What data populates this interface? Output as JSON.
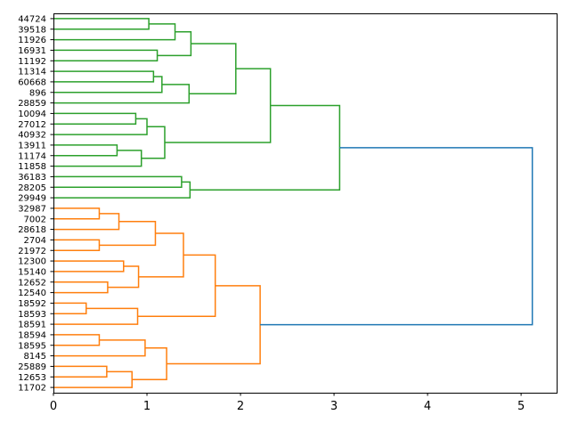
{
  "chart_data": {
    "type": "dendrogram",
    "orientation": "left",
    "title": "",
    "xlabel": "",
    "ylabel": "",
    "xlim": [
      0,
      5.38
    ],
    "xticks": [
      0,
      1,
      2,
      3,
      4,
      5
    ],
    "grid": false,
    "colors": {
      "above_threshold": "#1f77b4",
      "cluster1": "#2ca02c",
      "cluster2": "#ff7f0e"
    },
    "tree": {
      "h": 5.12,
      "color": "#1f77b4",
      "c": [
        {
          "h": 3.06,
          "color": "#2ca02c",
          "c": [
            {
              "h": 2.32,
              "c": [
                {
                  "h": 1.95,
                  "c": [
                    {
                      "h": 1.47,
                      "c": [
                        {
                          "h": 1.3,
                          "c": [
                            {
                              "h": 1.02,
                              "c": [
                                "44724",
                                "39518"
                              ]
                            },
                            "11926"
                          ]
                        },
                        {
                          "h": 1.11,
                          "c": [
                            "16931",
                            "11192"
                          ]
                        }
                      ]
                    },
                    {
                      "h": 1.45,
                      "c": [
                        {
                          "h": 1.16,
                          "c": [
                            {
                              "h": 1.07,
                              "c": [
                                "11314",
                                "60668"
                              ]
                            },
                            "896"
                          ]
                        },
                        "28859"
                      ]
                    }
                  ]
                },
                {
                  "h": 1.19,
                  "c": [
                    {
                      "h": 1.0,
                      "c": [
                        {
                          "h": 0.88,
                          "c": [
                            "10094",
                            "27012"
                          ]
                        },
                        "40932"
                      ]
                    },
                    {
                      "h": 0.94,
                      "c": [
                        {
                          "h": 0.68,
                          "c": [
                            "13911",
                            "11174"
                          ]
                        },
                        "11858"
                      ]
                    }
                  ]
                }
              ]
            },
            {
              "h": 1.46,
              "c": [
                {
                  "h": 1.37,
                  "c": [
                    "36183",
                    "28205"
                  ]
                },
                "29949"
              ]
            }
          ]
        },
        {
          "h": 2.21,
          "color": "#ff7f0e",
          "c": [
            {
              "h": 1.73,
              "c": [
                {
                  "h": 1.39,
                  "c": [
                    {
                      "h": 1.09,
                      "c": [
                        {
                          "h": 0.7,
                          "c": [
                            {
                              "h": 0.49,
                              "c": [
                                "32987",
                                "7002"
                              ]
                            },
                            "28618"
                          ]
                        },
                        {
                          "h": 0.49,
                          "c": [
                            "2704",
                            "21972"
                          ]
                        }
                      ]
                    },
                    {
                      "h": 0.91,
                      "c": [
                        {
                          "h": 0.75,
                          "c": [
                            "12300",
                            "15140"
                          ]
                        },
                        {
                          "h": 0.58,
                          "c": [
                            "12652",
                            "12540"
                          ]
                        }
                      ]
                    }
                  ]
                },
                {
                  "h": 0.9,
                  "c": [
                    {
                      "h": 0.35,
                      "c": [
                        "18592",
                        "18593"
                      ]
                    },
                    "18591"
                  ]
                }
              ]
            },
            {
              "h": 1.21,
              "c": [
                {
                  "h": 0.98,
                  "c": [
                    {
                      "h": 0.49,
                      "c": [
                        "18594",
                        "18595"
                      ]
                    },
                    "8145"
                  ]
                },
                {
                  "h": 0.84,
                  "c": [
                    {
                      "h": 0.57,
                      "c": [
                        "25889",
                        "12653"
                      ]
                    },
                    "11702"
                  ]
                }
              ]
            }
          ]
        }
      ]
    }
  }
}
